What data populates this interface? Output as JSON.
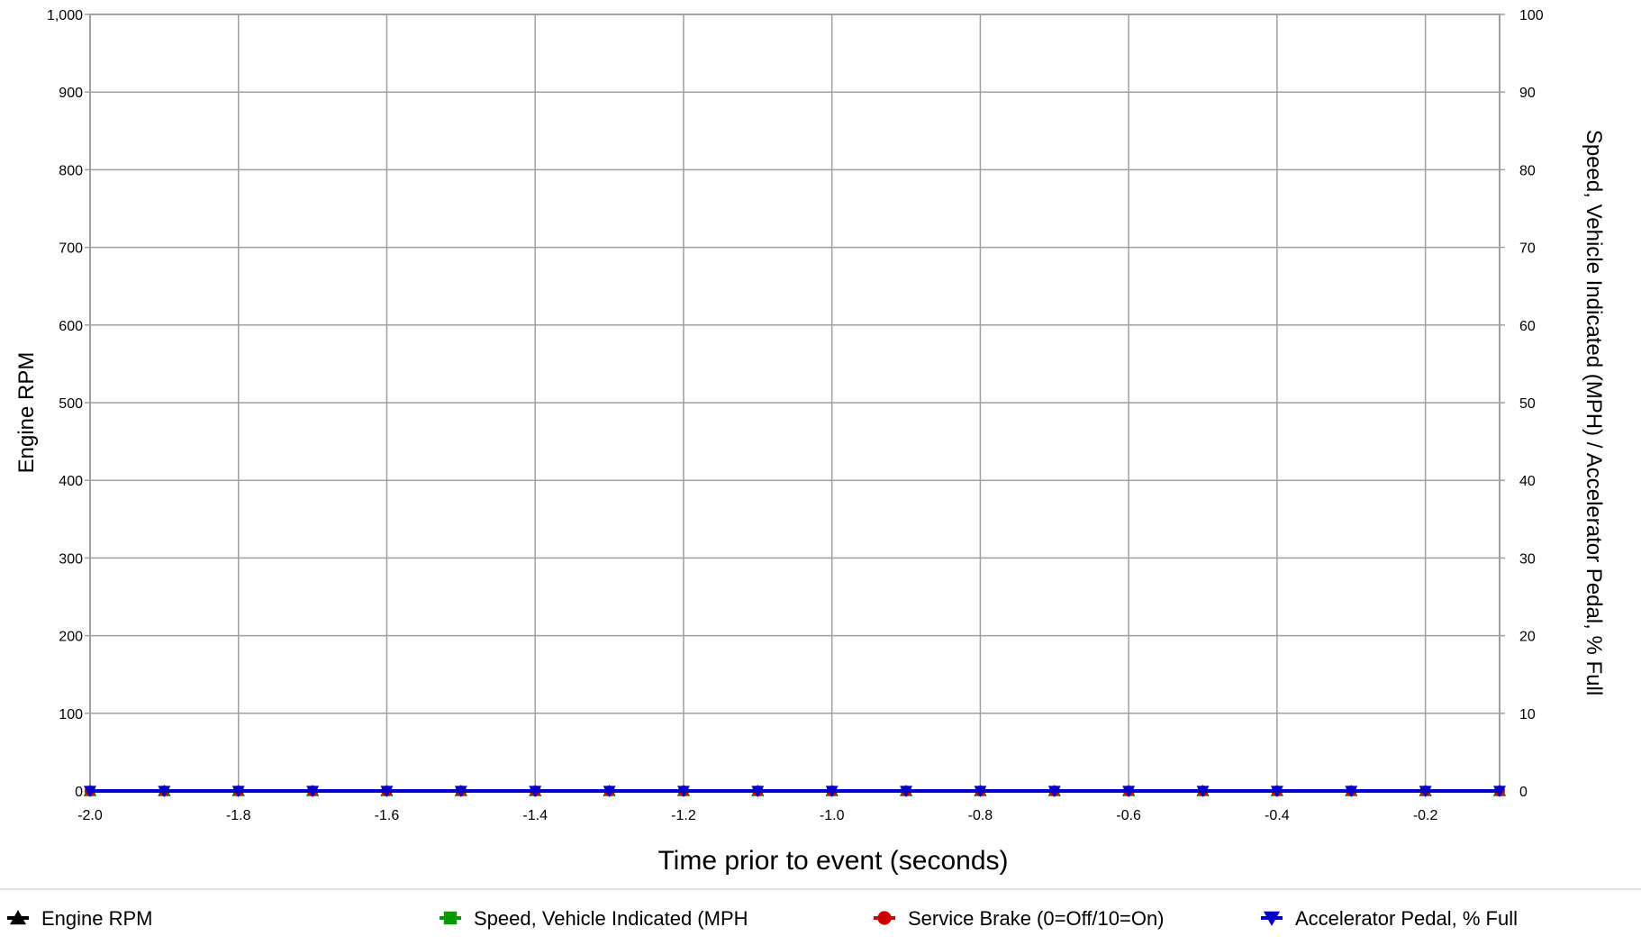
{
  "chart_data": {
    "type": "line",
    "title": "",
    "xlabel": "Time prior to event (seconds)",
    "ylabel_left": "Engine RPM",
    "ylabel_right": "Speed, Vehicle Indicated (MPH) / Accelerator Pedal, % Full",
    "xlim": [
      -2.0,
      -0.1
    ],
    "ylim_left": [
      0,
      1000
    ],
    "ylim_right": [
      0,
      100
    ],
    "grid": true,
    "legend_position": "bottom",
    "x_tick_values": [
      -2.0,
      -1.8,
      -1.6,
      -1.4,
      -1.2,
      -1.0,
      -0.8,
      -0.6,
      -0.4,
      -0.2
    ],
    "x_tick_labels": [
      "-2.0",
      "-1.8",
      "-1.6",
      "-1.4",
      "-1.2",
      "-1.0",
      "-0.8",
      "-0.6",
      "-0.4",
      "-0.2"
    ],
    "y_left_tick_values": [
      0,
      100,
      200,
      300,
      400,
      500,
      600,
      700,
      800,
      900,
      1000
    ],
    "y_left_tick_labels": [
      "0",
      "100",
      "200",
      "300",
      "400",
      "500",
      "600",
      "700",
      "800",
      "900",
      "1,000"
    ],
    "y_right_tick_values": [
      0,
      10,
      20,
      30,
      40,
      50,
      60,
      70,
      80,
      90,
      100
    ],
    "y_right_tick_labels": [
      "0",
      "10",
      "20",
      "30",
      "40",
      "50",
      "60",
      "70",
      "80",
      "90",
      "100"
    ],
    "x": [
      -2.0,
      -1.9,
      -1.8,
      -1.7,
      -1.6,
      -1.5,
      -1.4,
      -1.3,
      -1.2,
      -1.1,
      -1.0,
      -0.9,
      -0.8,
      -0.7,
      -0.6,
      -0.5,
      -0.4,
      -0.3,
      -0.2,
      -0.1
    ],
    "series": [
      {
        "name": "Engine RPM",
        "axis": "left",
        "color": "#000000",
        "marker": "triangle-up",
        "values": [
          0,
          0,
          0,
          0,
          0,
          0,
          0,
          0,
          0,
          0,
          0,
          0,
          0,
          0,
          0,
          0,
          0,
          0,
          0,
          0
        ]
      },
      {
        "name": "Speed, Vehicle Indicated (MPH",
        "axis": "right",
        "color": "#009900",
        "marker": "square",
        "values": [
          0,
          0,
          0,
          0,
          0,
          0,
          0,
          0,
          0,
          0,
          0,
          0,
          0,
          0,
          0,
          0,
          0,
          0,
          0,
          0
        ]
      },
      {
        "name": "Service Brake (0=Off/10=On)",
        "axis": "right",
        "color": "#cc0000",
        "marker": "circle",
        "values": [
          0,
          0,
          0,
          0,
          0,
          0,
          0,
          0,
          0,
          0,
          0,
          0,
          0,
          0,
          0,
          0,
          0,
          0,
          0,
          0
        ]
      },
      {
        "name": "Accelerator Pedal, % Full",
        "axis": "right",
        "color": "#0000cc",
        "marker": "triangle-down",
        "values": [
          0,
          0,
          0,
          0,
          0,
          0,
          0,
          0,
          0,
          0,
          0,
          0,
          0,
          0,
          0,
          0,
          0,
          0,
          0,
          0
        ]
      }
    ]
  }
}
